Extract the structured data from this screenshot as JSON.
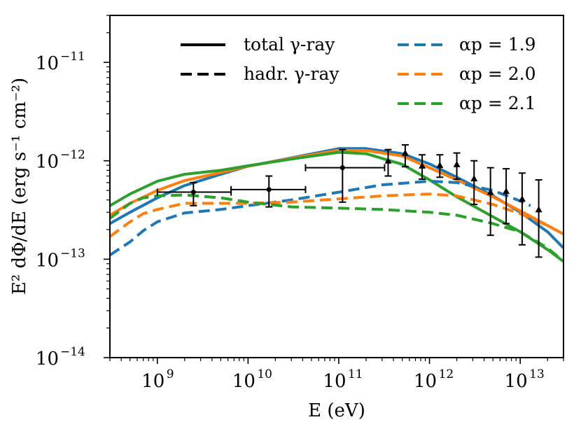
{
  "chart_data": {
    "type": "line",
    "xscale": "log",
    "yscale": "log",
    "xlim": [
      300000000.0,
      30000000000000.0
    ],
    "ylim": [
      1e-14,
      3e-11
    ],
    "xlabel": "E (eV)",
    "ylabel": "E² dΦ/dE (erg s⁻¹ cm⁻²)",
    "x_ticks": [
      {
        "value": 1000000000.0,
        "base": "10",
        "exp": "9"
      },
      {
        "value": 10000000000.0,
        "base": "10",
        "exp": "10"
      },
      {
        "value": 100000000000.0,
        "base": "10",
        "exp": "11"
      },
      {
        "value": 1000000000000.0,
        "base": "10",
        "exp": "12"
      },
      {
        "value": 10000000000000.0,
        "base": "10",
        "exp": "13"
      }
    ],
    "y_ticks": [
      {
        "value": 1e-14,
        "base": "10",
        "exp": "−14"
      },
      {
        "value": 1e-13,
        "base": "10",
        "exp": "−13"
      },
      {
        "value": 1e-12,
        "base": "10",
        "exp": "−12"
      },
      {
        "value": 1e-11,
        "base": "10",
        "exp": "−11"
      }
    ],
    "legend": {
      "placement": "top",
      "style_entries": [
        {
          "label": "total γ-ray",
          "dash": "solid"
        },
        {
          "label": "hadr. γ-ray",
          "dash": "dashed"
        }
      ],
      "color_entries": [
        {
          "label": "αp = 1.9",
          "color": "#1f77b4"
        },
        {
          "label": "αp = 2.0",
          "color": "#ff7f0e"
        },
        {
          "label": "αp = 2.1",
          "color": "#2ca02c"
        }
      ]
    },
    "series": [
      {
        "name": "total γ-ray, αp = 1.9",
        "color": "#1f77b4",
        "dash": "solid",
        "x": [
          300000000.0,
          500000000.0,
          1000000000.0,
          2000000000.0,
          5000000000.0,
          10000000000.0,
          30000000000.0,
          100000000000.0,
          200000000000.0,
          500000000000.0,
          1000000000000.0,
          2000000000000.0,
          5000000000000.0,
          10000000000000.0,
          20000000000000.0,
          30000000000000.0
        ],
        "y": [
          2.3e-13,
          3e-13,
          4.2e-13,
          5.6e-13,
          7.3e-13,
          8.8e-13,
          1.07e-12,
          1.33e-12,
          1.33e-12,
          1.18e-12,
          9.3e-13,
          6.8e-13,
          4.4e-13,
          3e-13,
          1.9e-13,
          1.3e-13
        ]
      },
      {
        "name": "total γ-ray, αp = 2.0",
        "color": "#ff7f0e",
        "dash": "solid",
        "x": [
          300000000.0,
          500000000.0,
          1000000000.0,
          2000000000.0,
          5000000000.0,
          10000000000.0,
          30000000000.0,
          100000000000.0,
          200000000000.0,
          500000000000.0,
          1000000000000.0,
          2000000000000.0,
          5000000000000.0,
          10000000000000.0,
          20000000000000.0,
          30000000000000.0
        ],
        "y": [
          2.8e-13,
          3.7e-13,
          5e-13,
          6.3e-13,
          7.6e-13,
          8.8e-13,
          1.06e-12,
          1.28e-12,
          1.27e-12,
          1.12e-12,
          8.5e-13,
          6.4e-13,
          4.3e-13,
          3.1e-13,
          2.2e-13,
          1.8e-13
        ]
      },
      {
        "name": "total γ-ray, αp = 2.1",
        "color": "#2ca02c",
        "dash": "solid",
        "x": [
          300000000.0,
          500000000.0,
          1000000000.0,
          2000000000.0,
          5000000000.0,
          10000000000.0,
          30000000000.0,
          100000000000.0,
          200000000000.0,
          500000000000.0,
          1000000000000.0,
          2000000000000.0,
          5000000000000.0,
          10000000000000.0,
          20000000000000.0,
          30000000000000.0
        ],
        "y": [
          3.5e-13,
          4.6e-13,
          6.2e-13,
          7.3e-13,
          8e-13,
          8.9e-13,
          1.04e-12,
          1.22e-12,
          1.18e-12,
          9.2e-13,
          6.4e-13,
          4.3e-13,
          2.7e-13,
          1.9e-13,
          1.25e-13,
          9.5e-14
        ]
      },
      {
        "name": "hadr. γ-ray, αp = 1.9",
        "color": "#1f77b4",
        "dash": "dashed",
        "x": [
          300000000.0,
          500000000.0,
          700000000.0,
          1000000000.0,
          2000000000.0,
          5000000000.0,
          10000000000.0,
          30000000000.0,
          100000000000.0,
          300000000000.0,
          1000000000000.0,
          2000000000000.0,
          5000000000000.0,
          10000000000000.0,
          13000000000000.0
        ],
        "y": [
          1.1e-13,
          1.5e-13,
          1.95e-13,
          2.4e-13,
          2.95e-13,
          3.2e-13,
          3.5e-13,
          4e-13,
          4.8e-13,
          5.7e-13,
          6.2e-13,
          6e-13,
          5e-13,
          3.9e-13,
          3.5e-13
        ]
      },
      {
        "name": "hadr. γ-ray, αp = 2.0",
        "color": "#ff7f0e",
        "dash": "dashed",
        "x": [
          300000000.0,
          500000000.0,
          700000000.0,
          1000000000.0,
          2000000000.0,
          5000000000.0,
          10000000000.0,
          30000000000.0,
          100000000000.0,
          300000000000.0,
          1000000000000.0,
          2000000000000.0,
          5000000000000.0,
          10000000000000.0,
          20000000000000.0,
          30000000000000.0
        ],
        "y": [
          1.7e-13,
          2.4e-13,
          2.9e-13,
          3.2e-13,
          3.7e-13,
          3.7e-13,
          3.7e-13,
          3.8e-13,
          4.1e-13,
          4.4e-13,
          4.6e-13,
          4.4e-13,
          3.6e-13,
          2.9e-13,
          2.2e-13,
          1.8e-13
        ]
      },
      {
        "name": "hadr. γ-ray, αp = 2.1",
        "color": "#2ca02c",
        "dash": "dashed",
        "x": [
          300000000.0,
          500000000.0,
          700000000.0,
          1000000000.0,
          2000000000.0,
          5000000000.0,
          10000000000.0,
          30000000000.0,
          100000000000.0,
          300000000000.0,
          1000000000000.0,
          2000000000000.0,
          5000000000000.0,
          10000000000000.0,
          20000000000000.0,
          30000000000000.0
        ],
        "y": [
          2.6e-13,
          3.7e-13,
          4.2e-13,
          4.4e-13,
          4.5e-13,
          4.2e-13,
          3.8e-13,
          3.4e-13,
          3.3e-13,
          3.2e-13,
          3e-13,
          2.8e-13,
          2.3e-13,
          1.9e-13,
          1.3e-13,
          9.5e-14
        ]
      }
    ],
    "data_points": [
      {
        "x": 2500000000.0,
        "y": 4.8e-13,
        "xlo": 1000000000.0,
        "xhi": 6500000000.0,
        "ylo": 3.5e-13,
        "yhi": 6e-13,
        "marker": "circle"
      },
      {
        "x": 17000000000.0,
        "y": 5.1e-13,
        "xlo": 6500000000.0,
        "xhi": 43000000000.0,
        "ylo": 3.4e-13,
        "yhi": 7e-13,
        "marker": "circle"
      },
      {
        "x": 110000000000.0,
        "y": 8.5e-13,
        "xlo": 43000000000.0,
        "xhi": 320000000000.0,
        "ylo": 3.8e-13,
        "yhi": 1.3e-12,
        "marker": "circle"
      },
      {
        "x": 350000000000.0,
        "y": 1e-12,
        "ylo": 7e-13,
        "yhi": 1.3e-12,
        "marker": "triangle"
      },
      {
        "x": 540000000000.0,
        "y": 1.2e-12,
        "ylo": 8.7e-13,
        "yhi": 1.45e-12,
        "marker": "triangle"
      },
      {
        "x": 830000000000.0,
        "y": 8.9e-13,
        "ylo": 6.5e-13,
        "yhi": 1.15e-12,
        "marker": "triangle"
      },
      {
        "x": 1300000000000.0,
        "y": 9e-13,
        "ylo": 6.8e-13,
        "yhi": 1.15e-12,
        "marker": "triangle"
      },
      {
        "x": 2000000000000.0,
        "y": 9.2e-13,
        "ylo": 6.5e-13,
        "yhi": 1.2e-12,
        "marker": "triangle"
      },
      {
        "x": 3100000000000.0,
        "y": 6.6e-13,
        "ylo": 3.6e-13,
        "yhi": 1e-12,
        "marker": "triangle"
      },
      {
        "x": 4700000000000.0,
        "y": 4.8e-13,
        "ylo": 1.75e-13,
        "yhi": 8.5e-13,
        "marker": "triangle"
      },
      {
        "x": 7000000000000.0,
        "y": 4.9e-13,
        "ylo": 2.3e-13,
        "yhi": 8.3e-13,
        "marker": "triangle"
      },
      {
        "x": 10500000000000.0,
        "y": 4.1e-13,
        "ylo": 1.4e-13,
        "yhi": 7.5e-13,
        "marker": "triangle"
      },
      {
        "x": 16000000000000.0,
        "y": 3.2e-13,
        "ylo": 1.05e-13,
        "yhi": 6.4e-13,
        "marker": "triangle"
      }
    ]
  }
}
